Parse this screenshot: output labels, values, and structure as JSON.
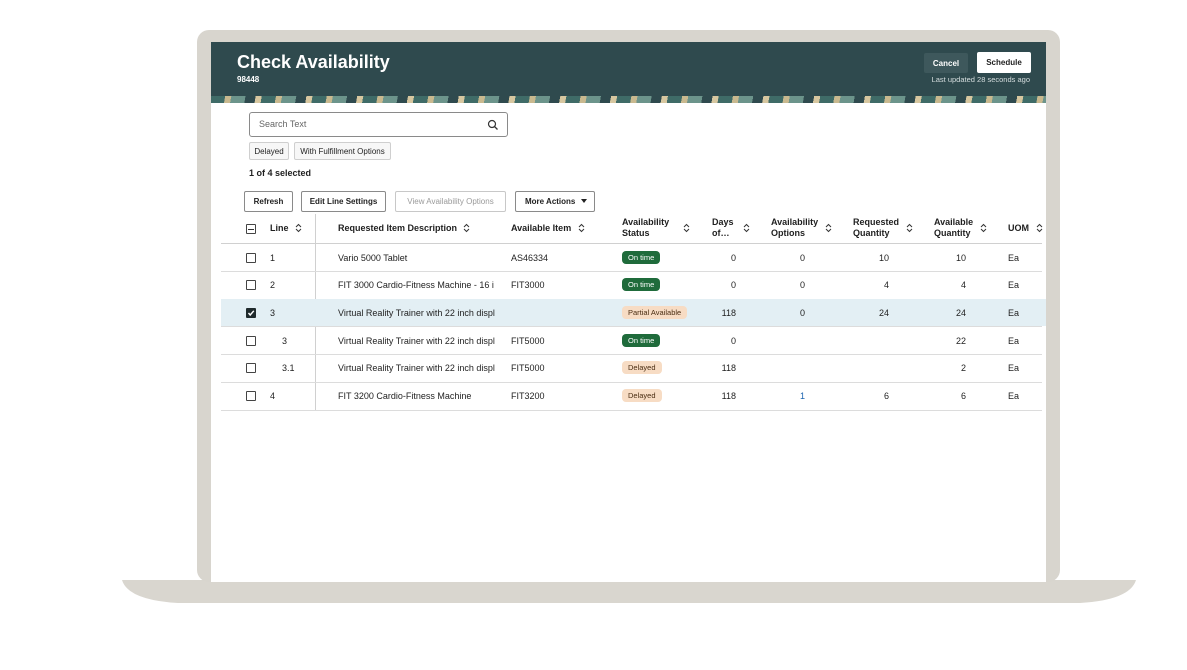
{
  "header": {
    "title": "Check Availability",
    "subtitle": "98448",
    "cancel": "Cancel",
    "schedule": "Schedule",
    "updated": "Last updated 28 seconds ago"
  },
  "search": {
    "placeholder": "Search Text"
  },
  "filters": [
    "Delayed",
    "With Fulfillment Options"
  ],
  "selection": "1 of 4 selected",
  "toolbar": {
    "refresh": "Refresh",
    "edit": "Edit Line Settings",
    "view": "View Availability Options",
    "more": "More Actions"
  },
  "table": {
    "columns": [
      "Line",
      "Requested Item Description",
      "Available Item",
      "Availability Status",
      "Days of…",
      "Availability Options",
      "Requested Quantity",
      "Available Quantity",
      "UOM"
    ],
    "rows": [
      {
        "line": "1",
        "level": 0,
        "selected": false,
        "description": "Vario 5000 Tablet",
        "item": "AS46334",
        "status": "On time",
        "days": 0,
        "options": 0,
        "requested": 10,
        "available": 10,
        "uom": "Ea"
      },
      {
        "line": "2",
        "level": 0,
        "selected": false,
        "description": "FIT 3000 Cardio-Fitness Machine - 16 i",
        "item": "FIT3000",
        "status": "On time",
        "days": 0,
        "options": 0,
        "requested": 4,
        "available": 4,
        "uom": "Ea"
      },
      {
        "line": "3",
        "level": 0,
        "selected": true,
        "description": "Virtual Reality Trainer with 22 inch displ",
        "item": null,
        "status": "Partial Available",
        "days": 118,
        "options": 0,
        "requested": 24,
        "available": 24,
        "uom": "Ea"
      },
      {
        "line": "3",
        "level": 1,
        "selected": false,
        "description": "Virtual Reality Trainer with 22 inch displ",
        "item": "FIT5000",
        "status": "On time",
        "days": 0,
        "options": null,
        "requested": null,
        "available": 22,
        "uom": "Ea"
      },
      {
        "line": "3.1",
        "level": 1,
        "selected": false,
        "description": "Virtual Reality Trainer with 22 inch displ",
        "item": "FIT5000",
        "status": "Delayed",
        "days": 118,
        "options": null,
        "requested": null,
        "available": 2,
        "uom": "Ea"
      },
      {
        "line": "4",
        "level": 0,
        "selected": false,
        "description": "FIT 3200 Cardio-Fitness Machine",
        "item": "FIT3200",
        "status": "Delayed",
        "days": 118,
        "options": 1,
        "requested": 6,
        "available": 6,
        "uom": "Ea"
      }
    ]
  }
}
